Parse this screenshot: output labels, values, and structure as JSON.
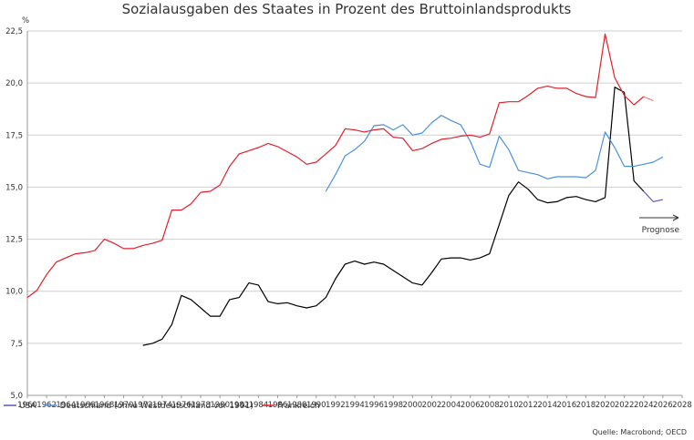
{
  "chart_data": {
    "type": "line",
    "title": "Sozialausgaben des Staates in Prozent des Bruttoinlandsprodukts",
    "ylabel": "%",
    "xlabel": "",
    "xlim": [
      1960,
      2028
    ],
    "ylim": [
      5.0,
      22.5
    ],
    "yticks": [
      5.0,
      7.5,
      10.0,
      12.5,
      15.0,
      17.5,
      20.0,
      22.5
    ],
    "ytick_labels": [
      "5,0",
      "7,5",
      "10,0",
      "12,5",
      "15,0",
      "17,5",
      "20,0",
      "22,5"
    ],
    "xticks": [
      1960,
      1962,
      1964,
      1966,
      1968,
      1970,
      1972,
      1974,
      1976,
      1978,
      1980,
      1982,
      1984,
      1986,
      1988,
      1990,
      1992,
      1994,
      1996,
      1998,
      2000,
      2002,
      2004,
      2006,
      2008,
      2010,
      2012,
      2014,
      2016,
      2018,
      2020,
      2022,
      2024,
      2026,
      2028
    ],
    "grid": true,
    "legend_position": "bottom-left",
    "forecast_start": 2024,
    "series": [
      {
        "name": "USA",
        "color": "#000000",
        "forecast_color": "#5b55c6",
        "x": [
          1972,
          1973,
          1974,
          1975,
          1976,
          1977,
          1978,
          1979,
          1980,
          1981,
          1982,
          1983,
          1984,
          1985,
          1986,
          1987,
          1988,
          1989,
          1990,
          1991,
          1992,
          1993,
          1994,
          1995,
          1996,
          1997,
          1998,
          1999,
          2000,
          2001,
          2002,
          2003,
          2004,
          2005,
          2006,
          2007,
          2008,
          2009,
          2010,
          2011,
          2012,
          2013,
          2014,
          2015,
          2016,
          2017,
          2018,
          2019,
          2020,
          2021,
          2022,
          2023,
          2024,
          2025,
          2026
        ],
        "values": [
          7.4,
          7.5,
          7.7,
          8.4,
          9.8,
          9.6,
          9.2,
          8.8,
          8.8,
          9.6,
          9.7,
          10.4,
          10.3,
          9.5,
          9.4,
          9.45,
          9.3,
          9.2,
          9.3,
          9.7,
          10.6,
          11.3,
          11.45,
          11.3,
          11.4,
          11.3,
          11.0,
          10.7,
          10.4,
          10.3,
          10.9,
          11.55,
          11.6,
          11.6,
          11.5,
          11.6,
          11.8,
          13.2,
          14.6,
          15.25,
          14.9,
          14.4,
          14.25,
          14.3,
          14.5,
          14.55,
          14.4,
          14.3,
          14.5,
          19.8,
          19.55,
          15.3,
          14.8,
          14.3,
          14.4
        ]
      },
      {
        "name": "Deutschland (ohne Westdeutschland vor 1991)",
        "color": "#4a90e2",
        "forecast_color": "#4a90e2",
        "x": [
          1991,
          1992,
          1993,
          1994,
          1995,
          1996,
          1997,
          1998,
          1999,
          2000,
          2001,
          2002,
          2003,
          2004,
          2005,
          2006,
          2007,
          2008,
          2009,
          2010,
          2011,
          2012,
          2013,
          2014,
          2015,
          2016,
          2017,
          2018,
          2019,
          2020,
          2021,
          2022,
          2023,
          2024,
          2025,
          2026
        ],
        "values": [
          14.8,
          15.6,
          16.5,
          16.8,
          17.2,
          17.95,
          18.0,
          17.75,
          18.0,
          17.5,
          17.6,
          18.1,
          18.45,
          18.2,
          18.0,
          17.2,
          16.1,
          15.95,
          17.45,
          16.8,
          15.8,
          15.7,
          15.6,
          15.4,
          15.5,
          15.5,
          15.5,
          15.45,
          15.8,
          17.65,
          16.9,
          16.0,
          16.0,
          16.1,
          16.2,
          16.45
        ]
      },
      {
        "name": "Frankreich",
        "color": "#e0202c",
        "forecast_color": "#f08080",
        "x": [
          1960,
          1961,
          1962,
          1963,
          1964,
          1965,
          1966,
          1967,
          1968,
          1969,
          1970,
          1971,
          1972,
          1973,
          1974,
          1975,
          1976,
          1977,
          1978,
          1979,
          1980,
          1981,
          1982,
          1983,
          1984,
          1985,
          1986,
          1987,
          1988,
          1989,
          1990,
          1991,
          1992,
          1993,
          1994,
          1995,
          1996,
          1997,
          1998,
          1999,
          2000,
          2001,
          2002,
          2003,
          2004,
          2005,
          2006,
          2007,
          2008,
          2009,
          2010,
          2011,
          2012,
          2013,
          2014,
          2015,
          2016,
          2017,
          2018,
          2019,
          2020,
          2021,
          2022,
          2023,
          2024,
          2025,
          2026
        ],
        "values": [
          9.7,
          10.05,
          10.8,
          11.4,
          11.6,
          11.8,
          11.85,
          11.95,
          12.5,
          12.3,
          12.05,
          12.05,
          12.2,
          12.3,
          12.45,
          13.9,
          13.9,
          14.2,
          14.75,
          14.8,
          15.1,
          16.0,
          16.6,
          16.75,
          16.9,
          17.1,
          16.95,
          16.7,
          16.45,
          16.1,
          16.2,
          16.6,
          17.0,
          17.8,
          17.75,
          17.65,
          17.75,
          17.8,
          17.4,
          17.35,
          16.75,
          16.85,
          17.1,
          17.3,
          17.35,
          17.45,
          17.5,
          17.4,
          17.55,
          19.05,
          19.1,
          19.1,
          19.4,
          19.75,
          19.85,
          19.75,
          19.75,
          19.5,
          19.35,
          19.3,
          22.35,
          20.25,
          19.4,
          18.95,
          19.35,
          19.15,
          null
        ]
      }
    ],
    "annotations": {
      "prognose_label": "Prognose",
      "source": "Quelle: Macrobond; OECD"
    }
  }
}
